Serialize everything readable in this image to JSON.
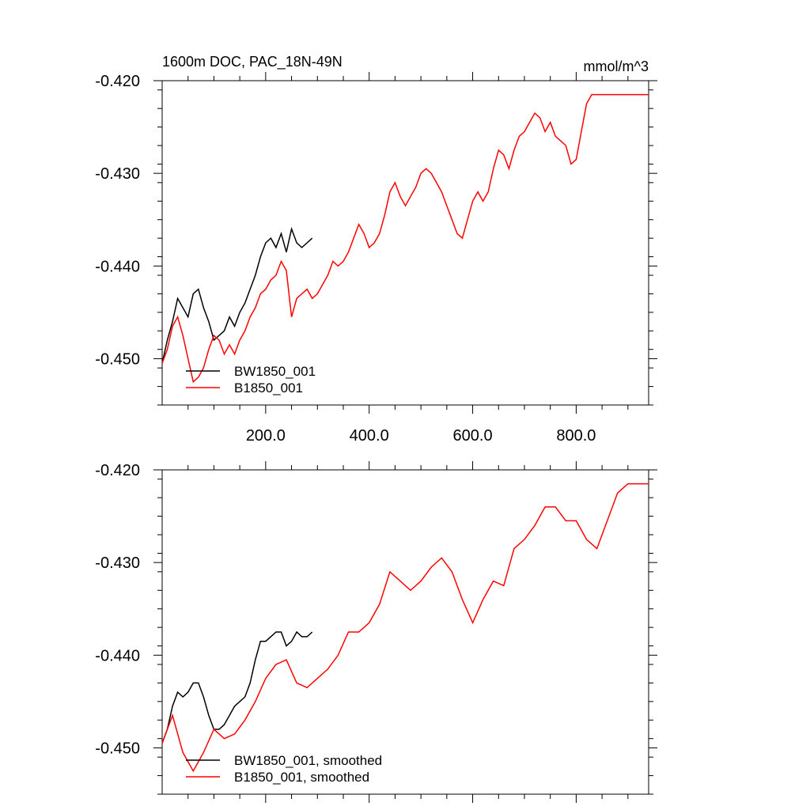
{
  "chart_data": [
    {
      "type": "line",
      "title": "1600m DOC, PAC_18N-49N",
      "units": "mmol/m^3",
      "xlim": [
        0,
        940
      ],
      "ylim": [
        -0.455,
        -0.42
      ],
      "x_ticks": [
        200,
        400,
        600,
        800
      ],
      "x_tick_labels": [
        "200.0",
        "400.0",
        "600.0",
        "800.0"
      ],
      "y_ticks": [
        -0.42,
        -0.43,
        -0.44,
        -0.45
      ],
      "y_tick_labels": [
        "-0.420",
        "-0.430",
        "-0.440",
        "-0.450"
      ],
      "legend_position": "bottom-left",
      "series": [
        {
          "name": "BW1850_001",
          "color": "#000000",
          "x": [
            0,
            10,
            20,
            30,
            40,
            50,
            60,
            70,
            80,
            90,
            100,
            110,
            120,
            130,
            140,
            150,
            160,
            170,
            180,
            190,
            200,
            210,
            220,
            230,
            240,
            250,
            260,
            270,
            280,
            290
          ],
          "y": [
            -0.4505,
            -0.448,
            -0.446,
            -0.4435,
            -0.4445,
            -0.4455,
            -0.443,
            -0.4425,
            -0.4445,
            -0.446,
            -0.448,
            -0.4475,
            -0.447,
            -0.4455,
            -0.4465,
            -0.445,
            -0.444,
            -0.4425,
            -0.441,
            -0.439,
            -0.4375,
            -0.437,
            -0.438,
            -0.4365,
            -0.4385,
            -0.436,
            -0.4375,
            -0.438,
            -0.4375,
            -0.437
          ]
        },
        {
          "name": "B1850_001",
          "color": "#ff0000",
          "x": [
            0,
            10,
            20,
            30,
            40,
            50,
            60,
            70,
            80,
            90,
            100,
            110,
            120,
            130,
            140,
            150,
            160,
            170,
            180,
            190,
            200,
            210,
            220,
            230,
            240,
            250,
            260,
            270,
            280,
            290,
            300,
            310,
            320,
            330,
            340,
            350,
            360,
            370,
            380,
            390,
            400,
            410,
            420,
            430,
            440,
            450,
            460,
            470,
            480,
            490,
            500,
            510,
            520,
            530,
            540,
            550,
            560,
            570,
            580,
            590,
            600,
            610,
            620,
            630,
            640,
            650,
            660,
            670,
            680,
            690,
            700,
            710,
            720,
            730,
            740,
            750,
            760,
            770,
            780,
            790,
            800,
            810,
            820,
            830,
            840,
            850,
            860,
            870,
            880,
            890,
            900,
            910,
            920,
            930,
            940
          ],
          "y": [
            -0.4505,
            -0.449,
            -0.4465,
            -0.4455,
            -0.4475,
            -0.45,
            -0.4525,
            -0.452,
            -0.451,
            -0.449,
            -0.4475,
            -0.448,
            -0.4495,
            -0.4485,
            -0.4495,
            -0.448,
            -0.447,
            -0.4455,
            -0.4445,
            -0.443,
            -0.4425,
            -0.4415,
            -0.441,
            -0.4395,
            -0.4405,
            -0.4455,
            -0.4435,
            -0.443,
            -0.4425,
            -0.4435,
            -0.443,
            -0.442,
            -0.441,
            -0.4395,
            -0.44,
            -0.4395,
            -0.4385,
            -0.437,
            -0.4355,
            -0.4365,
            -0.438,
            -0.4375,
            -0.4365,
            -0.4345,
            -0.432,
            -0.431,
            -0.4325,
            -0.4335,
            -0.4325,
            -0.4315,
            -0.43,
            -0.4295,
            -0.43,
            -0.431,
            -0.432,
            -0.4335,
            -0.435,
            -0.4365,
            -0.437,
            -0.435,
            -0.433,
            -0.432,
            -0.433,
            -0.432,
            -0.4295,
            -0.4275,
            -0.428,
            -0.4295,
            -0.4275,
            -0.426,
            -0.4255,
            -0.4245,
            -0.4235,
            -0.424,
            -0.4255,
            -0.4245,
            -0.426,
            -0.4265,
            -0.427,
            -0.429,
            -0.4285,
            -0.4255,
            -0.4225,
            -0.4215,
            -0.4215,
            -0.4215,
            -0.4215,
            -0.4215,
            -0.4215,
            -0.4215,
            -0.4215,
            -0.4215,
            -0.4215,
            -0.4215,
            -0.4215
          ]
        }
      ]
    },
    {
      "type": "line",
      "xlim": [
        0,
        940
      ],
      "ylim": [
        -0.455,
        -0.42
      ],
      "x_ticks": [
        200,
        400,
        600,
        800
      ],
      "y_ticks": [
        -0.42,
        -0.43,
        -0.44,
        -0.45
      ],
      "y_tick_labels": [
        "-0.420",
        "-0.430",
        "-0.440",
        "-0.450"
      ],
      "legend_position": "bottom-left",
      "series": [
        {
          "name": "BW1850_001, smoothed",
          "color": "#000000",
          "x": [
            0,
            10,
            20,
            30,
            40,
            50,
            60,
            70,
            80,
            90,
            100,
            110,
            120,
            130,
            140,
            150,
            160,
            170,
            180,
            190,
            200,
            210,
            220,
            230,
            240,
            250,
            260,
            270,
            280,
            290
          ],
          "y": [
            -0.4495,
            -0.448,
            -0.4455,
            -0.444,
            -0.4445,
            -0.444,
            -0.443,
            -0.443,
            -0.4445,
            -0.4465,
            -0.448,
            -0.448,
            -0.4475,
            -0.4465,
            -0.4455,
            -0.445,
            -0.4445,
            -0.443,
            -0.4405,
            -0.4385,
            -0.4385,
            -0.438,
            -0.4375,
            -0.4375,
            -0.439,
            -0.4385,
            -0.4375,
            -0.438,
            -0.438,
            -0.4375
          ]
        },
        {
          "name": "B1850_001, smoothed",
          "color": "#ff0000",
          "x": [
            0,
            20,
            40,
            60,
            80,
            100,
            120,
            140,
            160,
            180,
            200,
            220,
            240,
            260,
            280,
            300,
            320,
            340,
            360,
            380,
            400,
            420,
            440,
            460,
            480,
            500,
            520,
            540,
            560,
            580,
            600,
            620,
            640,
            660,
            680,
            700,
            720,
            740,
            760,
            780,
            800,
            820,
            840,
            860,
            880,
            900,
            920,
            940
          ],
          "y": [
            -0.4495,
            -0.4465,
            -0.4505,
            -0.4525,
            -0.4505,
            -0.448,
            -0.449,
            -0.4485,
            -0.447,
            -0.445,
            -0.4425,
            -0.441,
            -0.4405,
            -0.443,
            -0.4435,
            -0.4425,
            -0.4415,
            -0.44,
            -0.4375,
            -0.4375,
            -0.4365,
            -0.4345,
            -0.431,
            -0.432,
            -0.433,
            -0.432,
            -0.4305,
            -0.4295,
            -0.431,
            -0.434,
            -0.4365,
            -0.434,
            -0.432,
            -0.4325,
            -0.4285,
            -0.4275,
            -0.426,
            -0.424,
            -0.424,
            -0.4255,
            -0.4255,
            -0.4275,
            -0.4285,
            -0.4255,
            -0.4225,
            -0.4215,
            -0.4215,
            -0.4215
          ]
        }
      ]
    }
  ]
}
